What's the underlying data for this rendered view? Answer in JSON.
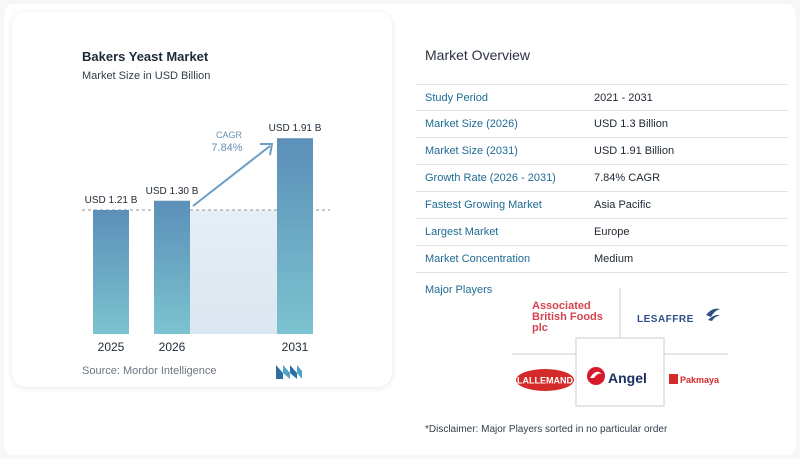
{
  "chart_data": {
    "type": "bar",
    "title": "Bakers Yeast Market",
    "subtitle": "Market Size in USD Billion",
    "categories": [
      "2025",
      "2026",
      "2031"
    ],
    "values": [
      1.21,
      1.3,
      1.91
    ],
    "value_labels": [
      "USD 1.21 B",
      "USD 1.30 B",
      "USD 1.91 B"
    ],
    "ylim": [
      0,
      2.0
    ],
    "grid": false,
    "reference_line_value": 1.21,
    "cagr_label": "CAGR",
    "cagr_value": "7.84%",
    "source": "Source:  Mordor Intelligence",
    "colors": {
      "bar_top": "#5b8fb8",
      "bar_bottom": "#7cc3d0",
      "arrow": "#6b9ec4",
      "cagr_text": "#6a90b5",
      "shade": "#e3ecf4"
    }
  },
  "overview": {
    "title": "Market Overview",
    "rows": [
      {
        "label": "Study Period",
        "value": "2021 - 2031"
      },
      {
        "label": "Market Size (2026)",
        "value": "USD 1.3 Billion"
      },
      {
        "label": "Market Size (2031)",
        "value": "USD 1.91 Billion"
      },
      {
        "label": "Growth Rate (2026 - 2031)",
        "value": "7.84% CAGR"
      },
      {
        "label": "Fastest Growing Market",
        "value": "Asia Pacific"
      },
      {
        "label": "Largest Market",
        "value": "Europe"
      },
      {
        "label": "Market Concentration",
        "value": "Medium"
      }
    ]
  },
  "players": {
    "title": "Major Players",
    "abf_line1": "Associated",
    "abf_line2": "British Foods",
    "abf_line3": "plc",
    "lesaffre": "LESAFFRE",
    "lallemand": "LALLEMAND",
    "angel": "Angel",
    "pakmaya": "Pakmaya"
  },
  "disclaimer": "*Disclaimer: Major Players sorted in no particular order"
}
